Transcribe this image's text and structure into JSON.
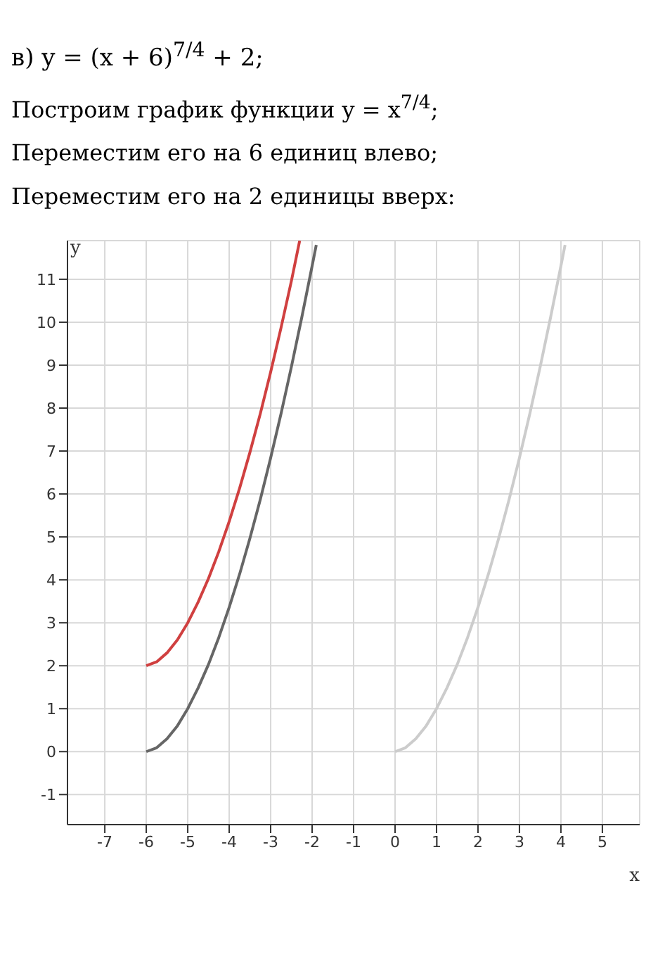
{
  "chart_data": {
    "type": "line",
    "title": "в) y = (x + 6)$^{7/4}$ + 2;",
    "annotations": [
      "Построим график функции y = x$^{7/4}$;",
      "Переместим его на 6 единиц влево;",
      "Переместим его на 2 единицы вверх:"
    ],
    "xlabel": "x",
    "ylabel": "y",
    "series": [
      {
        "color": "#cccccc",
        "x": [
          0,
          0.25,
          0.5,
          0.75,
          1,
          1.25,
          1.5,
          1.75,
          2,
          2.25,
          2.5,
          2.75,
          3,
          3.25,
          3.5,
          3.75,
          4,
          4.1
        ],
        "values": [
          0,
          0.09,
          0.3,
          0.6,
          1,
          1.48,
          2.03,
          2.66,
          3.36,
          4.13,
          4.97,
          5.87,
          6.84,
          7.87,
          8.96,
          10.11,
          11.31,
          11.8
        ]
      },
      {
        "color": "#666666",
        "x": [
          -6,
          -5.75,
          -5.5,
          -5.25,
          -5,
          -4.75,
          -4.5,
          -4.25,
          -4,
          -3.75,
          -3.5,
          -3.25,
          -3,
          -2.75,
          -2.5,
          -2.25,
          -2,
          -1.9
        ],
        "values": [
          0,
          0.09,
          0.3,
          0.6,
          1,
          1.48,
          2.03,
          2.66,
          3.36,
          4.13,
          4.97,
          5.87,
          6.84,
          7.87,
          8.96,
          10.11,
          11.31,
          11.8
        ]
      },
      {
        "color": "#d04040",
        "x": [
          -6,
          -5.75,
          -5.5,
          -5.25,
          -5,
          -4.75,
          -4.5,
          -4.25,
          -4,
          -3.75,
          -3.5,
          -3.25,
          -3,
          -2.75,
          -2.5,
          -2.3
        ],
        "values": [
          2,
          2.09,
          2.3,
          2.6,
          3,
          3.48,
          4.03,
          4.66,
          5.36,
          6.13,
          6.97,
          7.87,
          8.84,
          9.87,
          10.96,
          11.9
        ]
      }
    ],
    "xlim": [
      -7.9,
      5.9
    ],
    "ylim": [
      -1.7,
      11.9
    ],
    "xticks": [
      -7,
      -6,
      -5,
      -4,
      -3,
      -2,
      -1,
      0,
      1,
      2,
      3,
      4,
      5
    ],
    "yticks": [
      -1,
      0,
      1,
      2,
      3,
      4,
      5,
      6,
      7,
      8,
      9,
      10,
      11
    ],
    "grid": true,
    "marker": "none",
    "line_style": "solid"
  }
}
